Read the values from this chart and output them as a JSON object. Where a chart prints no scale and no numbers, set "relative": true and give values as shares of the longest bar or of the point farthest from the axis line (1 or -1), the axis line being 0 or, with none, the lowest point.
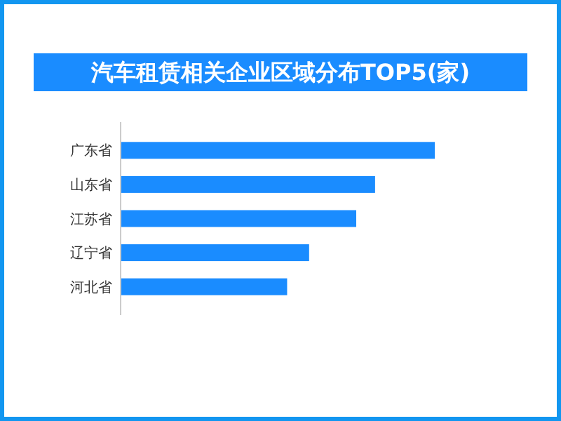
{
  "chart_data": {
    "type": "bar",
    "orientation": "horizontal",
    "relative": true,
    "title": "汽车租赁相关企业区域分布TOP5(家)",
    "categories": [
      "广东省",
      "山东省",
      "江苏省",
      "辽宁省",
      "河北省"
    ],
    "values": [
      1,
      0.81,
      0.75,
      0.6,
      0.53
    ],
    "color": "#1a8cff"
  }
}
